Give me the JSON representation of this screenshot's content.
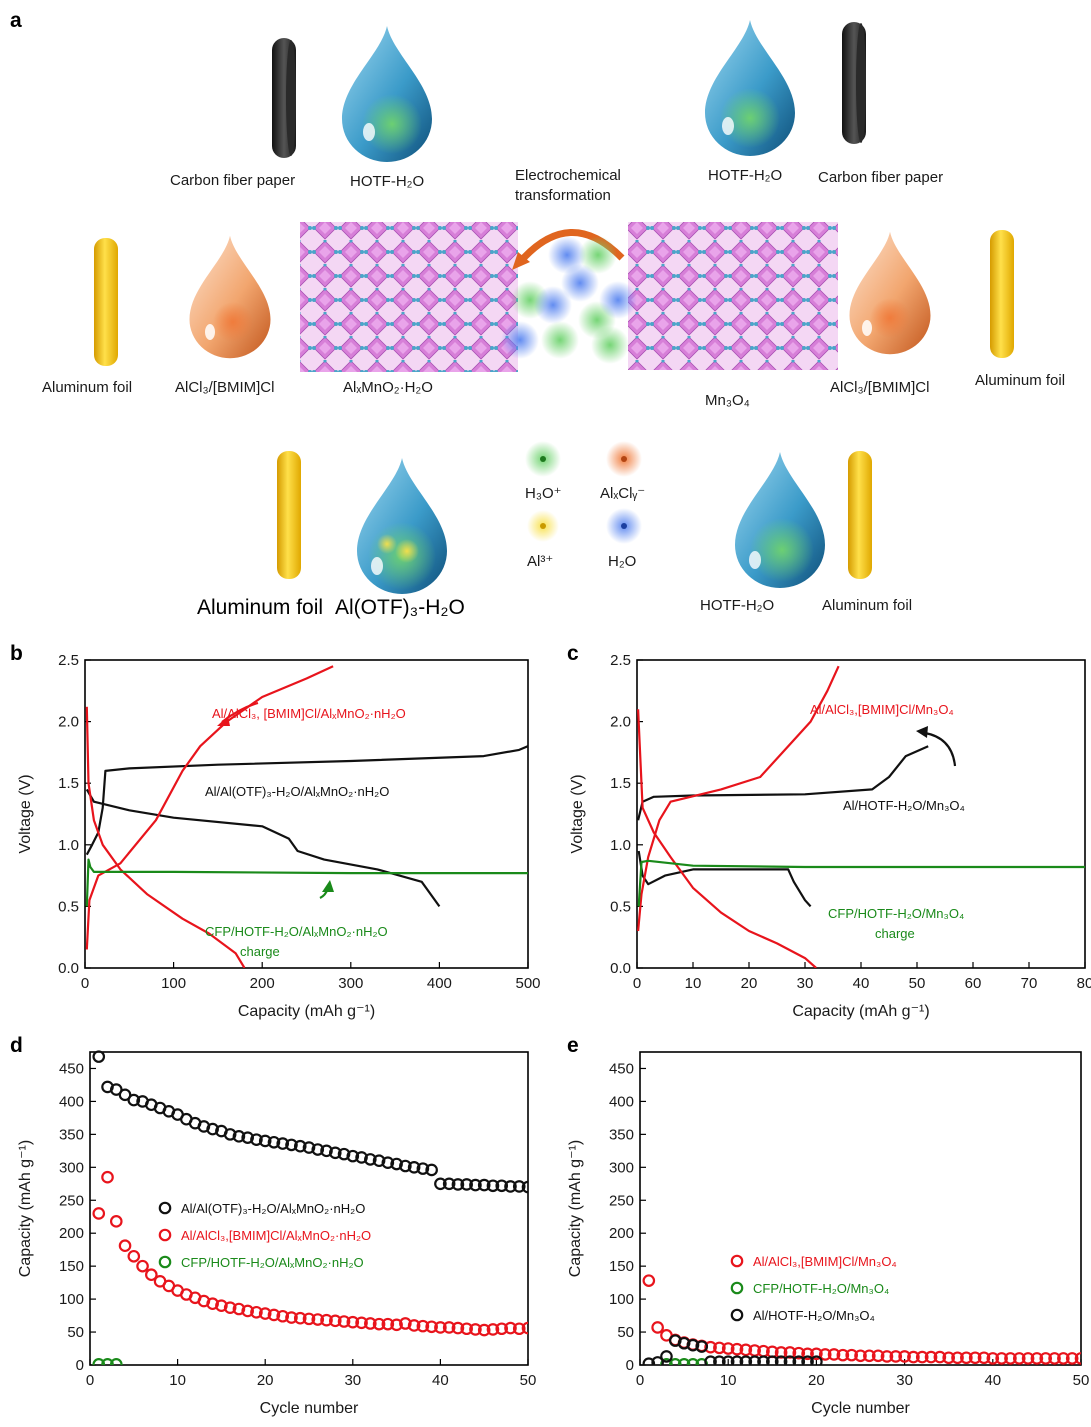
{
  "panel_a": {
    "panel_label": "a",
    "labels": {
      "cfp_left": "Carbon fiber paper",
      "hotf_left": "HOTF-H₂O",
      "echem": [
        "Electrochemical",
        "transformation"
      ],
      "hotf_right": "HOTF-H₂O",
      "cfp_right": "Carbon fiber paper",
      "al_foil_left": "Aluminum foil",
      "alcl3_left": "AlCl₃/[BMIM]Cl",
      "alxmno2": "AlₓMnO₂·H₂O",
      "mn3o4": "Mn₃O₄",
      "alcl3_right": "AlCl₃/[BMIM]Cl",
      "al_foil_right": "Aluminum foil",
      "legend_h3o": "H₃O⁺",
      "legend_alxcly": "AlₓClᵧ⁻",
      "legend_al3": "Al³⁺",
      "legend_h2o": "H₂O",
      "bottom_al_foil": "Aluminum foil",
      "bottom_al_otf": "Al(OTF)₃-H₂O",
      "bottom_hotf": "HOTF-H₂O",
      "bottom_al_foil_right": "Aluminum foil"
    },
    "colors": {
      "green": "#4caf50",
      "orange": "#e8642c",
      "yellow": "#f5c400",
      "blue": "#3a6fd8",
      "lattice": "#d77fd8",
      "foil": "#f3c20d"
    }
  },
  "chart_data": [
    {
      "panel": "b",
      "type": "line",
      "xlabel": "Capacity (mAh g⁻¹)",
      "ylabel": "Voltage (V)",
      "xlim": [
        0,
        500
      ],
      "ylim": [
        0,
        2.5
      ],
      "xticks": [
        0,
        100,
        200,
        300,
        400,
        500
      ],
      "yticks": [
        0.0,
        0.5,
        1.0,
        1.5,
        2.0,
        2.5
      ],
      "annotations": [
        {
          "text": "Al/AlCl₃, [BMIM]Cl/AlₓMnO₂·nH₂O",
          "color": "#e8141c"
        },
        {
          "text": "Al/Al(OTF)₃-H₂O/AlₓMnO₂·nH₂O",
          "color": "#111111"
        },
        {
          "text": "CFP/HOTF-H₂O/AlₓMnO₂·nH₂O",
          "color": "#1a8a1a"
        },
        {
          "text": "charge",
          "color": "#1a8a1a"
        }
      ],
      "series": [
        {
          "color": "#111111",
          "points": [
            [
              2,
              0.92
            ],
            [
              8,
              1.0
            ],
            [
              15,
              1.1
            ],
            [
              20,
              1.3
            ],
            [
              23,
              1.6
            ],
            [
              50,
              1.62
            ],
            [
              150,
              1.65
            ],
            [
              300,
              1.68
            ],
            [
              450,
              1.72
            ],
            [
              490,
              1.77
            ],
            [
              500,
              1.8
            ]
          ]
        },
        {
          "color": "#111111",
          "points": [
            [
              2,
              1.45
            ],
            [
              10,
              1.35
            ],
            [
              50,
              1.28
            ],
            [
              100,
              1.22
            ],
            [
              200,
              1.15
            ],
            [
              230,
              1.05
            ],
            [
              240,
              0.95
            ],
            [
              270,
              0.88
            ],
            [
              330,
              0.8
            ],
            [
              380,
              0.7
            ],
            [
              400,
              0.5
            ]
          ]
        },
        {
          "color": "#e8141c",
          "points": [
            [
              2,
              0.15
            ],
            [
              5,
              0.55
            ],
            [
              15,
              0.75
            ],
            [
              40,
              0.85
            ],
            [
              80,
              1.2
            ],
            [
              110,
              1.6
            ],
            [
              130,
              1.8
            ],
            [
              160,
              2.0
            ],
            [
              200,
              2.2
            ],
            [
              250,
              2.35
            ],
            [
              280,
              2.45
            ]
          ]
        },
        {
          "color": "#e8141c",
          "points": [
            [
              2,
              2.12
            ],
            [
              4,
              1.5
            ],
            [
              10,
              1.2
            ],
            [
              20,
              1.0
            ],
            [
              40,
              0.8
            ],
            [
              70,
              0.6
            ],
            [
              110,
              0.4
            ],
            [
              140,
              0.28
            ],
            [
              170,
              0.12
            ],
            [
              180,
              0.0
            ]
          ]
        },
        {
          "color": "#1a8a1a",
          "points": [
            [
              2,
              0.5
            ],
            [
              4,
              0.88
            ],
            [
              6,
              0.82
            ],
            [
              10,
              0.78
            ],
            [
              100,
              0.78
            ],
            [
              300,
              0.77
            ],
            [
              500,
              0.77
            ]
          ]
        }
      ]
    },
    {
      "panel": "c",
      "type": "line",
      "xlabel": "Capacity (mAh g⁻¹)",
      "ylabel": "Voltage (V)",
      "xlim": [
        0,
        80
      ],
      "ylim": [
        0,
        2.5
      ],
      "xticks": [
        0,
        10,
        20,
        30,
        40,
        50,
        60,
        70,
        80
      ],
      "yticks": [
        0.0,
        0.5,
        1.0,
        1.5,
        2.0,
        2.5
      ],
      "annotations": [
        {
          "text": "Al/AlCl₃,[BMIM]Cl/Mn₃O₄",
          "color": "#e8141c"
        },
        {
          "text": "Al/HOTF-H₂O/Mn₃O₄",
          "color": "#111111"
        },
        {
          "text": "CFP/HOTF-H₂O/Mn₃O₄",
          "color": "#1a8a1a"
        },
        {
          "text": "charge",
          "color": "#1a8a1a"
        }
      ],
      "series": [
        {
          "color": "#111111",
          "points": [
            [
              0.2,
              1.2
            ],
            [
              1,
              1.35
            ],
            [
              3,
              1.39
            ],
            [
              10,
              1.4
            ],
            [
              30,
              1.41
            ],
            [
              42,
              1.45
            ],
            [
              45,
              1.55
            ],
            [
              48,
              1.72
            ],
            [
              52,
              1.8
            ]
          ]
        },
        {
          "color": "#111111",
          "points": [
            [
              0.3,
              0.95
            ],
            [
              1,
              0.75
            ],
            [
              2,
              0.68
            ],
            [
              5,
              0.75
            ],
            [
              10,
              0.8
            ],
            [
              20,
              0.8
            ],
            [
              27,
              0.8
            ],
            [
              28,
              0.7
            ],
            [
              30,
              0.55
            ],
            [
              31,
              0.5
            ]
          ]
        },
        {
          "color": "#e8141c",
          "points": [
            [
              0.2,
              0.3
            ],
            [
              0.8,
              0.6
            ],
            [
              2,
              0.9
            ],
            [
              4,
              1.2
            ],
            [
              6,
              1.35
            ],
            [
              15,
              1.45
            ],
            [
              22,
              1.55
            ],
            [
              27,
              1.8
            ],
            [
              31,
              2.0
            ],
            [
              34,
              2.25
            ],
            [
              36,
              2.45
            ]
          ]
        },
        {
          "color": "#e8141c",
          "points": [
            [
              0.2,
              2.1
            ],
            [
              1,
              1.3
            ],
            [
              3,
              1.1
            ],
            [
              6,
              0.9
            ],
            [
              10,
              0.65
            ],
            [
              15,
              0.45
            ],
            [
              20,
              0.3
            ],
            [
              25,
              0.2
            ],
            [
              30,
              0.08
            ],
            [
              32,
              0.0
            ]
          ]
        },
        {
          "color": "#1a8a1a",
          "points": [
            [
              0.3,
              0.5
            ],
            [
              0.8,
              0.86
            ],
            [
              2,
              0.87
            ],
            [
              10,
              0.83
            ],
            [
              30,
              0.82
            ],
            [
              80,
              0.82
            ]
          ]
        }
      ]
    },
    {
      "panel": "d",
      "type": "scatter",
      "xlabel": "Cycle number",
      "ylabel": "Capacity (mAh g⁻¹)",
      "xlim": [
        0,
        50
      ],
      "ylim": [
        0,
        475
      ],
      "xticks": [
        0,
        10,
        20,
        30,
        40,
        50
      ],
      "yticks": [
        0,
        50,
        100,
        150,
        200,
        250,
        300,
        350,
        400,
        450
      ],
      "legend_position": "center",
      "series": [
        {
          "name": "Al/Al(OTF)₃-H₂O/AlₓMnO₂·nH₂O",
          "color": "#111111",
          "x": [
            1,
            2,
            3,
            4,
            5,
            6,
            7,
            8,
            9,
            10,
            11,
            12,
            13,
            14,
            15,
            16,
            17,
            18,
            19,
            20,
            21,
            22,
            23,
            24,
            25,
            26,
            27,
            28,
            29,
            30,
            31,
            32,
            33,
            34,
            35,
            36,
            37,
            38,
            39,
            40,
            41,
            42,
            43,
            44,
            45,
            46,
            47,
            48,
            49,
            50
          ],
          "y": [
            468,
            422,
            418,
            410,
            402,
            400,
            395,
            390,
            385,
            380,
            373,
            367,
            362,
            358,
            355,
            350,
            347,
            345,
            342,
            340,
            338,
            336,
            334,
            332,
            330,
            327,
            325,
            322,
            320,
            317,
            315,
            312,
            310,
            307,
            305,
            302,
            300,
            298,
            296,
            275,
            275,
            274,
            274,
            273,
            273,
            272,
            272,
            271,
            271,
            270
          ]
        },
        {
          "name": "Al/AlCl₃,[BMIM]Cl/AlₓMnO₂·nH₂O",
          "color": "#e8141c",
          "x": [
            1,
            2,
            3,
            4,
            5,
            6,
            7,
            8,
            9,
            10,
            11,
            12,
            13,
            14,
            15,
            16,
            17,
            18,
            19,
            20,
            21,
            22,
            23,
            24,
            25,
            26,
            27,
            28,
            29,
            30,
            31,
            32,
            33,
            34,
            35,
            36,
            37,
            38,
            39,
            40,
            41,
            42,
            43,
            44,
            45,
            46,
            47,
            48,
            49,
            50
          ],
          "y": [
            230,
            285,
            218,
            181,
            165,
            150,
            137,
            127,
            120,
            113,
            107,
            102,
            97,
            93,
            90,
            87,
            85,
            82,
            80,
            78,
            76,
            74,
            72,
            71,
            70,
            69,
            68,
            67,
            66,
            65,
            64,
            63,
            62,
            62,
            61,
            63,
            60,
            59,
            58,
            57,
            57,
            56,
            55,
            54,
            53,
            54,
            55,
            56,
            55,
            56
          ]
        },
        {
          "name": "CFP/HOTF-H₂O/AlₓMnO₂·nH₂O",
          "color": "#1a8a1a",
          "x": [
            1,
            2,
            3
          ],
          "y": [
            1,
            1,
            1
          ]
        }
      ]
    },
    {
      "panel": "e",
      "type": "scatter",
      "xlabel": "Cycle number",
      "ylabel": "Capacity (mAh g⁻¹)",
      "xlim": [
        0,
        50
      ],
      "ylim": [
        0,
        475
      ],
      "xticks": [
        0,
        10,
        20,
        30,
        40,
        50
      ],
      "yticks": [
        0,
        50,
        100,
        150,
        200,
        250,
        300,
        350,
        400,
        450
      ],
      "legend_position": "center",
      "series": [
        {
          "name": "Al/AlCl₃,[BMIM]Cl/Mn₃O₄",
          "color": "#e8141c",
          "x": [
            1,
            2,
            3,
            4,
            5,
            6,
            7,
            8,
            9,
            10,
            11,
            12,
            13,
            14,
            15,
            16,
            17,
            18,
            19,
            20,
            21,
            22,
            23,
            24,
            25,
            26,
            27,
            28,
            29,
            30,
            31,
            32,
            33,
            34,
            35,
            36,
            37,
            38,
            39,
            40,
            41,
            42,
            43,
            44,
            45,
            46,
            47,
            48,
            49,
            50
          ],
          "y": [
            128,
            57,
            45,
            38,
            34,
            31,
            29,
            27,
            26,
            25,
            24,
            23,
            22,
            21,
            20,
            19,
            19,
            18,
            17,
            17,
            16,
            16,
            15,
            15,
            14,
            14,
            14,
            13,
            13,
            13,
            12,
            12,
            12,
            12,
            11,
            11,
            11,
            11,
            11,
            10,
            10,
            10,
            10,
            10,
            10,
            10,
            10,
            10,
            10,
            10
          ]
        },
        {
          "name": "CFP/HOTF-H₂O/Mn₃O₄",
          "color": "#1a8a1a",
          "x": [
            3,
            4,
            5,
            6,
            7
          ],
          "y": [
            1,
            1,
            1,
            1,
            1
          ]
        },
        {
          "name": "Al/HOTF-H₂O/Mn₃O₄",
          "color": "#111111",
          "x": [
            1,
            2,
            3,
            4,
            5,
            6,
            7,
            8,
            9,
            10,
            11,
            12,
            13,
            14,
            15,
            16,
            17,
            18,
            19,
            20
          ],
          "y": [
            2,
            4,
            13,
            37,
            33,
            30,
            28,
            5,
            5,
            5,
            5,
            5,
            5,
            5,
            5,
            5,
            5,
            5,
            5,
            5
          ]
        }
      ]
    }
  ],
  "panel_labels": [
    "b",
    "c",
    "d",
    "e"
  ]
}
